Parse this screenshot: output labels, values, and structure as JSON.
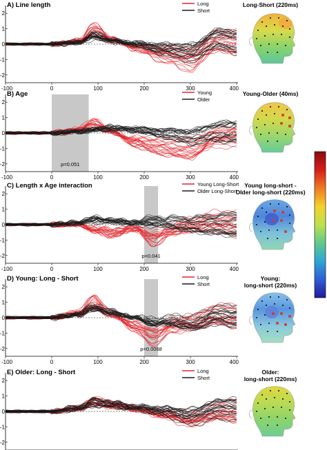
{
  "colors": {
    "red": "#e0262b",
    "black": "#1a1a1a",
    "gray": "#c8c8c8"
  },
  "colorbar_colors": [
    "#8b0b0b",
    "#d61e1e",
    "#f07a22",
    "#f2d22c",
    "#bde24d",
    "#62c98b",
    "#2fa6d6",
    "#2f5dd6",
    "#1f1b9a"
  ],
  "panels": [
    {
      "id": "A",
      "title": "A) Line length",
      "legend": [
        {
          "label": "Long",
          "color": "red"
        },
        {
          "label": "Short",
          "color": "black"
        }
      ],
      "topo_title": [
        "Long-Short (220ms)"
      ],
      "y_ticks": [
        "2",
        "1",
        "0",
        "-1",
        "-2"
      ],
      "x_ticks": [
        "-100",
        "0",
        "100",
        "200",
        "300",
        "400"
      ],
      "shade": null,
      "p_value": "",
      "chart_data": {
        "type": "line",
        "xlim": [
          -100,
          400
        ],
        "ylim": [
          -2.5,
          2.5
        ],
        "series": [
          {
            "name": "Long",
            "x": [
              -100,
              0,
              60,
              90,
              130,
              180,
              240,
              300,
              360,
              400
            ],
            "mean": [
              0,
              0,
              0.2,
              0.9,
              0.3,
              -0.2,
              -0.6,
              -0.9,
              0.2,
              0.1
            ]
          },
          {
            "name": "Short",
            "x": [
              -100,
              0,
              60,
              90,
              130,
              180,
              240,
              300,
              360,
              400
            ],
            "mean": [
              0,
              0,
              0.1,
              0.5,
              0.2,
              0,
              -0.3,
              -0.5,
              0.3,
              0.1
            ]
          }
        ]
      }
    },
    {
      "id": "B",
      "title": "B) Age",
      "legend": [
        {
          "label": "Young",
          "color": "red"
        },
        {
          "label": "Older",
          "color": "black"
        }
      ],
      "topo_title": [
        "Young-Older (40ms)"
      ],
      "y_ticks": [
        "2",
        "1",
        "0",
        "-1",
        "-2"
      ],
      "x_ticks": [
        "-100",
        "0",
        "100",
        "200",
        "300",
        "400"
      ],
      "shade": [
        0,
        80
      ],
      "p_value": "p=0.051",
      "chart_data": {
        "type": "line",
        "xlim": [
          -100,
          400
        ],
        "ylim": [
          -2.5,
          2.5
        ],
        "series": [
          {
            "name": "Young",
            "x": [
              -100,
              0,
              60,
              90,
              130,
              180,
              240,
              300,
              360,
              400
            ],
            "mean": [
              0,
              0,
              0.2,
              0.6,
              0.1,
              -0.6,
              -1.0,
              -1.2,
              -0.4,
              -0.3
            ]
          },
          {
            "name": "Older",
            "x": [
              -100,
              0,
              60,
              90,
              130,
              180,
              240,
              300,
              360,
              400
            ],
            "mean": [
              0,
              0,
              0.1,
              0.2,
              0.3,
              0.2,
              0,
              -0.2,
              0.1,
              0.1
            ]
          }
        ]
      }
    },
    {
      "id": "C",
      "title": "C) Length x Age interaction",
      "legend": [
        {
          "label": "Young Long-Short",
          "color": "red"
        },
        {
          "label": "Older Long-Short",
          "color": "black"
        }
      ],
      "topo_title": [
        "Young long-short -",
        "Older long-short (220ms)"
      ],
      "y_ticks": [
        "2",
        "1",
        "0",
        "-1",
        "-2"
      ],
      "x_ticks": [
        "-100",
        "0",
        "100",
        "200",
        "300",
        "400"
      ],
      "shade": [
        200,
        230
      ],
      "p_value": "p=0.041",
      "chart_data": {
        "type": "line",
        "xlim": [
          -100,
          400
        ],
        "ylim": [
          -2.5,
          2.5
        ],
        "series": [
          {
            "name": "Young Long-Short",
            "x": [
              -100,
              0,
              60,
              90,
              130,
              180,
              220,
              260,
              300,
              360,
              400
            ],
            "mean": [
              0,
              0,
              0,
              -0.3,
              -0.5,
              -0.2,
              -0.8,
              -0.3,
              0,
              0.2,
              0.1
            ]
          },
          {
            "name": "Older Long-Short",
            "x": [
              -100,
              0,
              60,
              90,
              130,
              180,
              220,
              260,
              300,
              360,
              400
            ],
            "mean": [
              0,
              0,
              0.1,
              0.3,
              0.2,
              0.1,
              0.2,
              0.1,
              0,
              0,
              0
            ]
          }
        ]
      }
    },
    {
      "id": "D",
      "title": "D) Young: Long - Short",
      "legend": [
        {
          "label": "Long",
          "color": "red"
        },
        {
          "label": "Short",
          "color": "black"
        }
      ],
      "topo_title": [
        "Young:",
        "long-short (220ms)"
      ],
      "y_ticks": [
        "2",
        "1",
        "0",
        "-1",
        "-2"
      ],
      "x_ticks": [
        "-100",
        "0",
        "100",
        "200",
        "300",
        "400"
      ],
      "shade": [
        200,
        230
      ],
      "p_value": "p=0.0068",
      "chart_data": {
        "type": "line",
        "xlim": [
          -100,
          400
        ],
        "ylim": [
          -2.5,
          2.5
        ],
        "series": [
          {
            "name": "Long",
            "x": [
              -100,
              0,
              60,
              90,
              130,
              180,
              220,
              260,
              300,
              360,
              400
            ],
            "mean": [
              0,
              0,
              0.3,
              1.0,
              0.2,
              -0.6,
              -1.2,
              -0.5,
              -0.3,
              0.2,
              0.1
            ]
          },
          {
            "name": "Short",
            "x": [
              -100,
              0,
              60,
              90,
              130,
              180,
              220,
              260,
              300,
              360,
              400
            ],
            "mean": [
              0,
              0,
              0.2,
              0.6,
              0.3,
              0,
              -0.3,
              -0.2,
              -0.4,
              0.2,
              0.1
            ]
          }
        ]
      }
    },
    {
      "id": "E",
      "title": "E) Older: Long - Short",
      "legend": [
        {
          "label": "Long",
          "color": "red"
        },
        {
          "label": "Short",
          "color": "black"
        }
      ],
      "topo_title": [
        "Older:",
        "long-short (220ms)"
      ],
      "y_ticks": [
        "2",
        "1",
        "0",
        "-1",
        "-2"
      ],
      "x_ticks": [],
      "shade": null,
      "p_value": "",
      "chart_data": {
        "type": "line",
        "xlim": [
          -100,
          400
        ],
        "ylim": [
          -2.5,
          2.5
        ],
        "series": [
          {
            "name": "Long",
            "x": [
              -100,
              0,
              60,
              90,
              130,
              180,
              240,
              300,
              360,
              400
            ],
            "mean": [
              0,
              0,
              0.2,
              0.6,
              0.4,
              0.2,
              -0.1,
              -0.4,
              0.1,
              0.1
            ]
          },
          {
            "name": "Short",
            "x": [
              -100,
              0,
              60,
              90,
              130,
              180,
              240,
              300,
              360,
              400
            ],
            "mean": [
              0,
              0,
              0.2,
              0.5,
              0.4,
              0.2,
              0,
              -0.3,
              0.1,
              0.1
            ]
          }
        ]
      }
    }
  ]
}
